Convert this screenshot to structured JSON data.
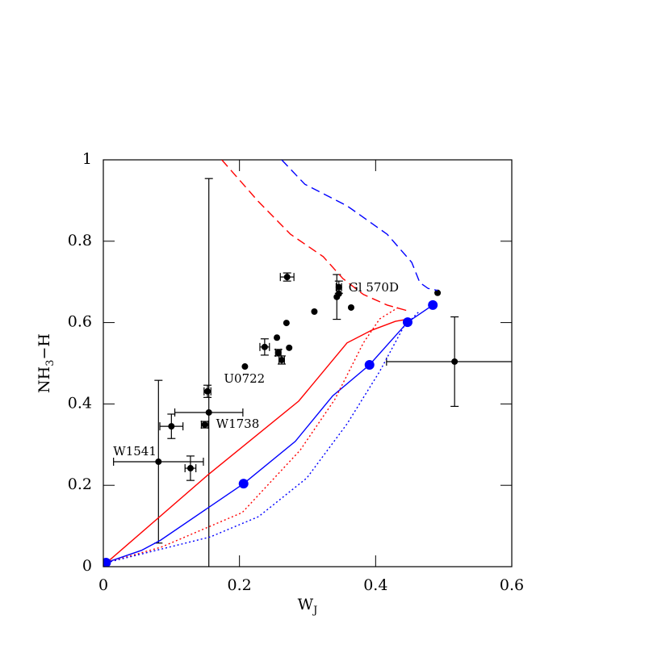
{
  "chart_data": {
    "type": "scatter",
    "xlabel": [
      "W",
      "J"
    ],
    "ylabel": [
      "NH",
      "3",
      "−H"
    ],
    "xlim": [
      0,
      0.6
    ],
    "ylim": [
      0,
      1
    ],
    "xticks": [
      0,
      0.2,
      0.4,
      0.6
    ],
    "yticks": [
      0,
      0.2,
      0.4,
      0.6,
      0.8,
      1
    ],
    "series": [
      {
        "color": "#000000",
        "style": "points",
        "x": [
          0.081,
          0.1,
          0.128,
          0.149,
          0.155,
          0.153,
          0.208,
          0.237,
          0.255,
          0.257,
          0.262,
          0.273,
          0.269,
          0.27,
          0.31,
          0.343,
          0.346,
          0.346,
          0.364,
          0.491,
          0.516
        ],
        "values": [
          0.258,
          0.345,
          0.242,
          0.349,
          0.379,
          0.431,
          0.492,
          0.54,
          0.563,
          0.526,
          0.508,
          0.538,
          0.599,
          0.712,
          0.627,
          0.663,
          0.687,
          0.671,
          0.637,
          0.673,
          0.504
        ],
        "xerr": [
          0.066,
          0.017,
          0.008,
          0.005,
          0.05,
          0.005,
          null,
          0.007,
          null,
          0.004,
          0.004,
          null,
          null,
          0.01,
          null,
          null,
          0.004,
          null,
          null,
          null,
          0.1
        ],
        "yerr": [
          0.2,
          0.03,
          0.03,
          0.008,
          0.575,
          0.015,
          null,
          0.02,
          null,
          0.008,
          0.01,
          null,
          null,
          0.01,
          null,
          0.055,
          0.015,
          null,
          null,
          null,
          0.11
        ],
        "point_labels": [
          "W1541",
          null,
          null,
          "W1738",
          null,
          null,
          "U0722",
          null,
          null,
          null,
          null,
          null,
          null,
          null,
          null,
          null,
          "Gl 570D",
          null,
          null,
          null,
          null
        ]
      },
      {
        "color": "#ff0000",
        "style": "solid",
        "x": [
          0.005,
          0.154,
          0.287,
          0.358,
          0.394,
          0.429,
          0.449
        ],
        "values": [
          0.01,
          0.226,
          0.407,
          0.55,
          0.581,
          0.603,
          0.609
        ]
      },
      {
        "color": "#0000ff",
        "style": "solid",
        "x": [
          0.004,
          0.056,
          0.084,
          0.206,
          0.282,
          0.337,
          0.391,
          0.447,
          0.484
        ],
        "values": [
          0.01,
          0.04,
          0.065,
          0.204,
          0.308,
          0.42,
          0.496,
          0.601,
          0.643
        ]
      },
      {
        "color": "#ff0000",
        "style": "dotted",
        "x": [
          0.005,
          0.085,
          0.204,
          0.289,
          0.34,
          0.382,
          0.406,
          0.435
        ],
        "values": [
          0.01,
          0.048,
          0.133,
          0.286,
          0.411,
          0.55,
          0.609,
          0.639
        ]
      },
      {
        "color": "#0000ff",
        "style": "dotted",
        "x": [
          0.005,
          0.157,
          0.228,
          0.299,
          0.358,
          0.406,
          0.441,
          0.465
        ],
        "values": [
          0.01,
          0.073,
          0.123,
          0.218,
          0.351,
          0.48,
          0.589,
          0.629
        ]
      },
      {
        "color": "#ff0000",
        "style": "dashed",
        "x": [
          0.174,
          0.228,
          0.275,
          0.323,
          0.352,
          0.382,
          0.417,
          0.447
        ],
        "values": [
          1.0,
          0.897,
          0.817,
          0.762,
          0.708,
          0.669,
          0.643,
          0.629
        ]
      },
      {
        "color": "#0000ff",
        "style": "dashed",
        "x": [
          0.262,
          0.296,
          0.358,
          0.417,
          0.453,
          0.465,
          0.477,
          0.491
        ],
        "values": [
          1.0,
          0.94,
          0.887,
          0.817,
          0.748,
          0.698,
          0.684,
          0.679
        ]
      },
      {
        "color": "#0000ff",
        "style": "dots",
        "x": [
          0.004,
          0.206,
          0.391,
          0.447,
          0.484
        ],
        "values": [
          0.01,
          0.204,
          0.496,
          0.601,
          0.643
        ]
      }
    ]
  }
}
